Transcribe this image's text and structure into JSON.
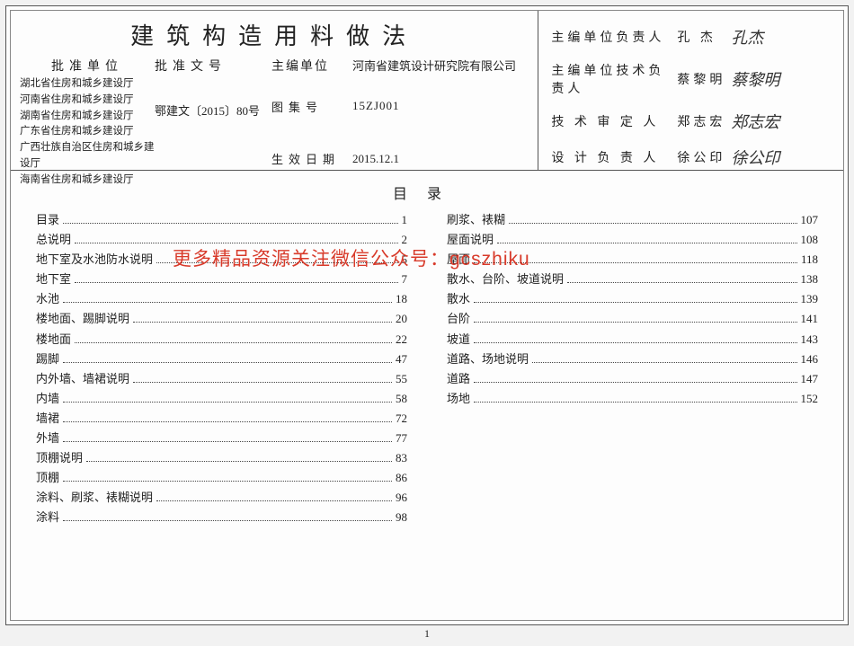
{
  "title": "建筑构造用料做法",
  "header_labels": {
    "approval_unit": "批准单位",
    "approval_no": "批准文号",
    "editor_unit": "主编单位",
    "atlas_no": "图集号",
    "effective_date": "生效日期"
  },
  "approval_units": [
    "湖北省住房和城乡建设厅",
    "河南省住房和城乡建设厅",
    "湖南省住房和城乡建设厅",
    "广东省住房和城乡建设厅",
    "广西壮族自治区住房和城乡建设厅",
    "海南省住房和城乡建设厅"
  ],
  "approval_no_value": "鄂建文〔2015〕80号",
  "editor_unit_value": "河南省建筑设计研究院有限公司",
  "atlas_no_value": "15ZJ001",
  "effective_date_value": "2015.12.1",
  "responsibles": [
    {
      "label": "主编单位负责人",
      "name": "孔 杰",
      "sign": "孔杰"
    },
    {
      "label": "主编单位技术负责人",
      "name": "蔡黎明",
      "sign": "蔡黎明"
    },
    {
      "label": "技 术 审 定 人",
      "name": "郑志宏",
      "sign": "郑志宏"
    },
    {
      "label": "设 计 负 责 人",
      "name": "徐公印",
      "sign": "徐公印"
    }
  ],
  "toc_title": "目录",
  "toc_left": [
    {
      "label": "目录",
      "page": "1"
    },
    {
      "label": "总说明",
      "page": "2"
    },
    {
      "label": "地下室及水池防水说明",
      "page": "5"
    },
    {
      "label": "地下室",
      "page": "7"
    },
    {
      "label": "水池",
      "page": "18"
    },
    {
      "label": "楼地面、踢脚说明",
      "page": "20"
    },
    {
      "label": "楼地面",
      "page": "22"
    },
    {
      "label": "踢脚",
      "page": "47"
    },
    {
      "label": "内外墙、墙裙说明",
      "page": "55"
    },
    {
      "label": "内墙",
      "page": "58"
    },
    {
      "label": "墙裙",
      "page": "72"
    },
    {
      "label": "外墙",
      "page": "77"
    },
    {
      "label": "顶棚说明",
      "page": "83"
    },
    {
      "label": "顶棚",
      "page": "86"
    },
    {
      "label": "涂料、刷浆、裱糊说明",
      "page": "96"
    },
    {
      "label": "涂料",
      "page": "98"
    }
  ],
  "toc_right": [
    {
      "label": "刷浆、裱糊",
      "page": "107"
    },
    {
      "label": "屋面说明",
      "page": "108"
    },
    {
      "label": "屋面",
      "page": "118"
    },
    {
      "label": "散水、台阶、坡道说明",
      "page": "138"
    },
    {
      "label": "散水",
      "page": "139"
    },
    {
      "label": "台阶",
      "page": "141"
    },
    {
      "label": "坡道",
      "page": "143"
    },
    {
      "label": "道路、场地说明",
      "page": "146"
    },
    {
      "label": "道路",
      "page": "147"
    },
    {
      "label": "场地",
      "page": "152"
    }
  ],
  "watermark": "更多精品资源关注微信公众号：gcszhiku",
  "page_number": "1"
}
